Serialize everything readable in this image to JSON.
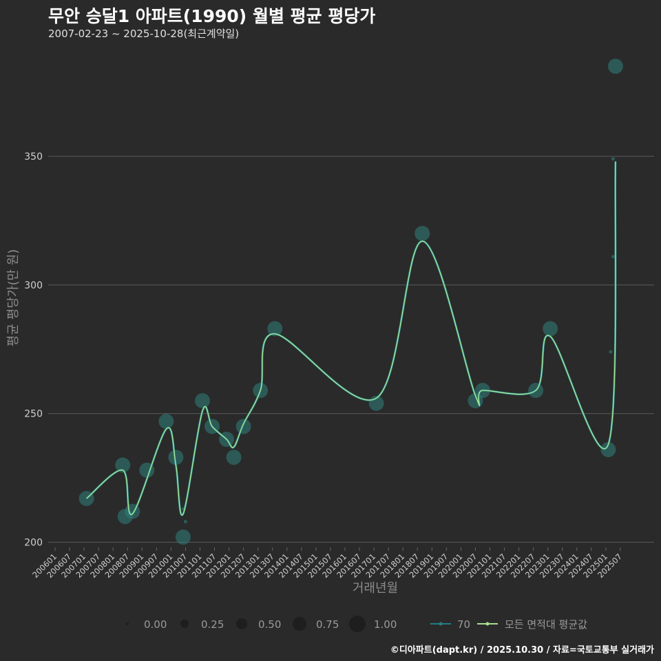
{
  "header": {
    "title": "무안 승달1 아파트(1990) 월별 평균 평당가",
    "subtitle": "2007-02-23 ~ 2025-10-28(최근계약일)"
  },
  "caption": "©디아파트(dapt.kr) / 2025.10.30 / 자료=국토교통부 실거래가",
  "colors": {
    "background": "#2a2a2b",
    "grid": "#5a5a5a",
    "point": "#2f7f7a",
    "series_line": "#1f7f86",
    "avg_line": "#a8e090",
    "size_legend": "#1e1e1e"
  },
  "chart_data": {
    "type": "line",
    "title": "무안 승달1 아파트(1990) 월별 평균 평당가",
    "xlabel": "거래년월",
    "ylabel": "평균 평당가(만 원)",
    "ylim": [
      198,
      392
    ],
    "yticks": [
      200,
      250,
      300,
      350
    ],
    "x_tick_labels": [
      "200601",
      "200607",
      "200701",
      "200707",
      "200801",
      "200807",
      "200901",
      "200907",
      "201001",
      "201007",
      "201101",
      "201107",
      "201201",
      "201207",
      "201301",
      "201307",
      "201401",
      "201407",
      "201501",
      "201507",
      "201601",
      "201607",
      "201701",
      "201707",
      "201801",
      "201807",
      "201901",
      "201907",
      "202001",
      "202007",
      "202101",
      "202107",
      "202201",
      "202207",
      "202301",
      "202307",
      "202401",
      "202407",
      "202501",
      "202507"
    ],
    "x_range_months": [
      0,
      240
    ],
    "points": [
      {
        "month": 13,
        "value": 217,
        "size": 0.4
      },
      {
        "month": 28,
        "value": 230,
        "size": 0.4
      },
      {
        "month": 29,
        "value": 210,
        "size": 0.4
      },
      {
        "month": 32,
        "value": 212,
        "size": 0.4
      },
      {
        "month": 38,
        "value": 228,
        "size": 0.4
      },
      {
        "month": 46,
        "value": 247,
        "size": 0.4
      },
      {
        "month": 50,
        "value": 233,
        "size": 0.4
      },
      {
        "month": 53,
        "value": 213,
        "size": 0.03
      },
      {
        "month": 54,
        "value": 208,
        "size": 0.03
      },
      {
        "month": 53,
        "value": 202,
        "size": 0.4
      },
      {
        "month": 61,
        "value": 255,
        "size": 0.4
      },
      {
        "month": 65,
        "value": 245,
        "size": 0.4
      },
      {
        "month": 71,
        "value": 240,
        "size": 0.4
      },
      {
        "month": 74,
        "value": 233,
        "size": 0.4
      },
      {
        "month": 78,
        "value": 245,
        "size": 0.4
      },
      {
        "month": 85,
        "value": 259,
        "size": 0.4
      },
      {
        "month": 91,
        "value": 283,
        "size": 0.4
      },
      {
        "month": 133,
        "value": 254,
        "size": 0.4
      },
      {
        "month": 152,
        "value": 320,
        "size": 0.4
      },
      {
        "month": 174,
        "value": 255,
        "size": 0.4
      },
      {
        "month": 177,
        "value": 259,
        "size": 0.4
      },
      {
        "month": 199,
        "value": 259,
        "size": 0.4
      },
      {
        "month": 205,
        "value": 283,
        "size": 0.4
      },
      {
        "month": 229,
        "value": 236,
        "size": 0.4
      },
      {
        "month": 232,
        "value": 385,
        "size": 0.4
      },
      {
        "month": 231,
        "value": 349,
        "size": 0.03
      },
      {
        "month": 231,
        "value": 311,
        "size": 0.03
      },
      {
        "month": 230,
        "value": 274,
        "size": 0.03
      }
    ],
    "series": [
      {
        "name": "70",
        "x": [
          13,
          28,
          32,
          46,
          50,
          53,
          61,
          65,
          71,
          74,
          78,
          85,
          91,
          133,
          152,
          174,
          177,
          199,
          205,
          229,
          232
        ],
        "values": [
          217,
          228,
          211,
          244,
          230,
          211,
          251,
          245,
          240,
          237,
          246,
          259,
          281,
          256,
          317,
          257,
          259,
          259,
          280,
          238,
          348
        ]
      },
      {
        "name": "모든 면적대 평균값",
        "x": [
          13,
          28,
          32,
          46,
          50,
          53,
          61,
          65,
          71,
          74,
          78,
          85,
          91,
          133,
          152,
          174,
          177,
          199,
          205,
          229,
          232
        ],
        "values": [
          217,
          228,
          211,
          244,
          230,
          211,
          251,
          245,
          240,
          237,
          246,
          259,
          281,
          256,
          317,
          257,
          259,
          259,
          280,
          238,
          348
        ]
      }
    ],
    "size_legend": {
      "values": [
        0.0,
        0.25,
        0.5,
        0.75,
        1.0
      ],
      "labels": [
        "0.00",
        "0.25",
        "0.50",
        "0.75",
        "1.00"
      ]
    },
    "legend_position": "bottom"
  }
}
